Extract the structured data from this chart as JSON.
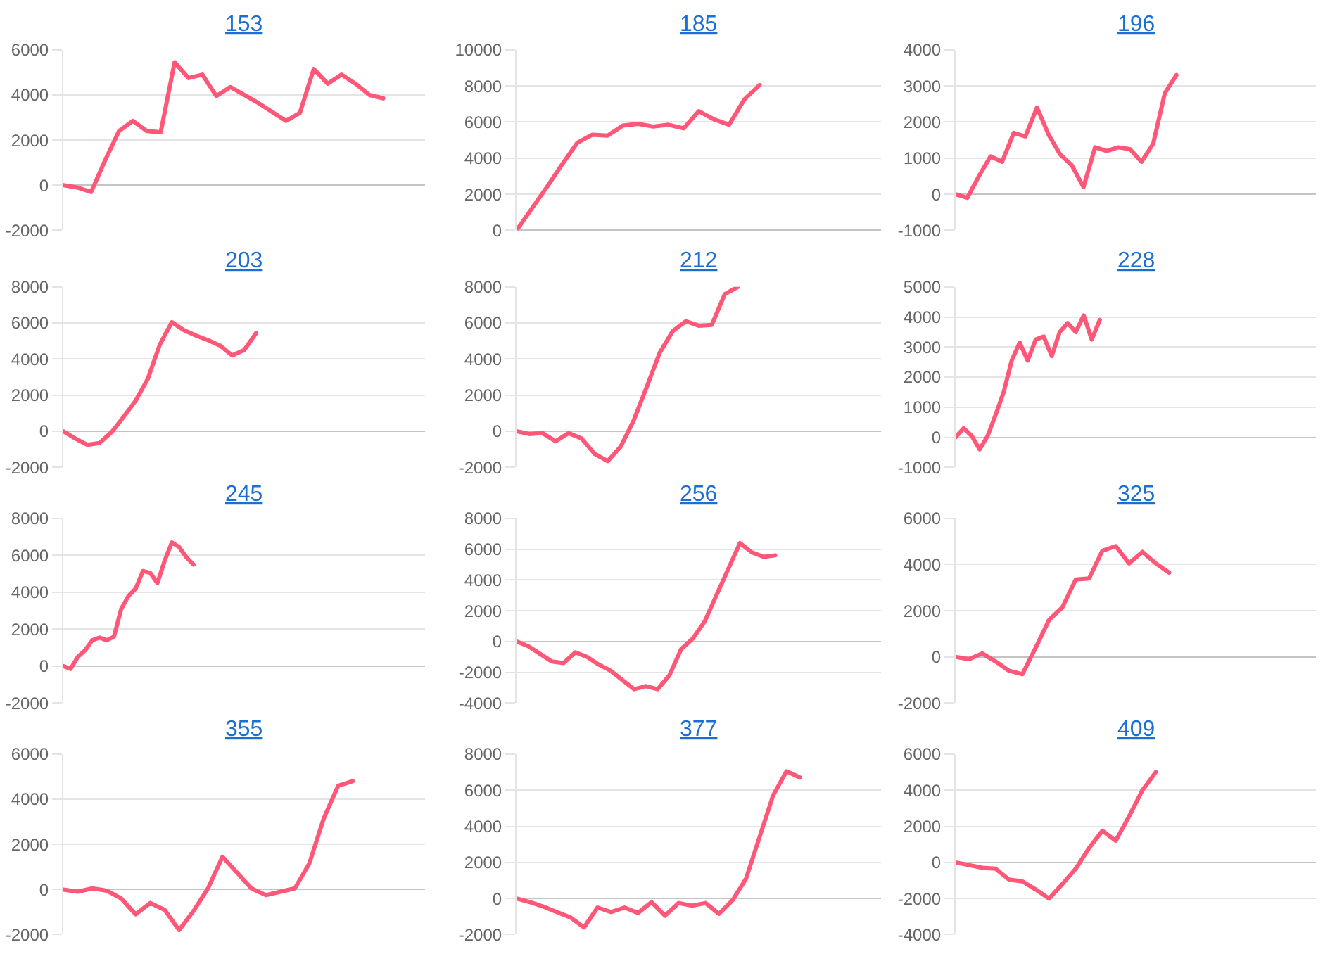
{
  "chart_data": [
    {
      "type": "line",
      "title": "153",
      "categories": [
        null,
        null,
        null,
        null,
        null,
        null,
        null,
        null,
        null,
        null,
        null,
        null,
        null,
        null,
        null,
        null,
        null,
        null,
        null,
        null,
        null,
        null,
        null,
        null,
        null,
        null,
        null
      ],
      "values": [
        0,
        -100,
        -300,
        1100,
        2400,
        2850,
        2400,
        2350,
        5450,
        4750,
        4900,
        3950,
        4350,
        4000,
        3650,
        3250,
        2850,
        3200,
        5150,
        4500,
        4900,
        4500,
        4000,
        3850,
        null,
        null,
        null
      ],
      "color": "#ff5777",
      "ylim": [
        -2000,
        6000
      ],
      "yticks": [
        -2000,
        0,
        2000,
        4000,
        6000
      ],
      "grid": "y",
      "tick_labels": "y"
    },
    {
      "type": "line",
      "title": "185",
      "categories": [
        null,
        null,
        null,
        null,
        null,
        null,
        null,
        null,
        null,
        null,
        null,
        null,
        null,
        null,
        null,
        null,
        null,
        null,
        null,
        null,
        null,
        null,
        null,
        null,
        null
      ],
      "values": [
        0,
        1200,
        2400,
        3650,
        4850,
        5300,
        5250,
        5800,
        5900,
        5750,
        5850,
        5650,
        6600,
        6150,
        5850,
        7250,
        8050,
        null,
        null,
        null,
        null,
        null,
        null,
        null,
        null
      ],
      "color": "#ff5777",
      "ylim": [
        0,
        10000
      ],
      "yticks": [
        0,
        2000,
        4000,
        6000,
        8000,
        10000
      ],
      "grid": "y",
      "tick_labels": "y"
    },
    {
      "type": "line",
      "title": "196",
      "categories": [
        null,
        null,
        null,
        null,
        null,
        null,
        null,
        null,
        null,
        null,
        null,
        null,
        null,
        null,
        null,
        null,
        null,
        null,
        null,
        null,
        null,
        null,
        null,
        null,
        null,
        null,
        null,
        null,
        null,
        null,
        null,
        null
      ],
      "values": [
        0,
        -100,
        500,
        1050,
        900,
        1700,
        1600,
        2400,
        1650,
        1100,
        800,
        200,
        1300,
        1200,
        1300,
        1250,
        900,
        1400,
        2800,
        3300,
        null,
        null,
        null,
        null,
        null,
        null,
        null,
        null,
        null,
        null,
        null,
        null
      ],
      "color": "#ff5777",
      "ylim": [
        -1000,
        4000
      ],
      "yticks": [
        -1000,
        0,
        1000,
        2000,
        3000,
        4000
      ],
      "grid": "y",
      "tick_labels": "y"
    },
    {
      "type": "line",
      "title": "203",
      "categories": [
        null,
        null,
        null,
        null,
        null,
        null,
        null,
        null,
        null,
        null,
        null,
        null,
        null,
        null,
        null,
        null,
        null,
        null,
        null,
        null,
        null,
        null,
        null,
        null,
        null,
        null,
        null,
        null,
        null,
        null,
        null
      ],
      "values": [
        0,
        -400,
        -750,
        -650,
        -50,
        800,
        1700,
        2900,
        4800,
        6050,
        5600,
        5300,
        5050,
        4750,
        4200,
        4500,
        5450,
        null,
        null,
        null,
        null,
        null,
        null,
        null,
        null,
        null,
        null,
        null,
        null,
        null,
        null
      ],
      "color": "#ff5777",
      "ylim": [
        -2000,
        8000
      ],
      "yticks": [
        -2000,
        0,
        2000,
        4000,
        6000,
        8000
      ],
      "grid": "y",
      "tick_labels": "y"
    },
    {
      "type": "line",
      "title": "212",
      "categories": [
        null,
        null,
        null,
        null,
        null,
        null,
        null,
        null,
        null,
        null,
        null,
        null,
        null,
        null,
        null,
        null,
        null,
        null,
        null,
        null,
        null,
        null,
        null,
        null,
        null,
        null,
        null,
        null,
        null
      ],
      "values": [
        0,
        -150,
        -100,
        -550,
        -100,
        -400,
        -1250,
        -1650,
        -850,
        600,
        2450,
        4350,
        5550,
        6100,
        5850,
        5900,
        7600,
        8000,
        null,
        null,
        null,
        null,
        null,
        null,
        null,
        null,
        null,
        null,
        null
      ],
      "color": "#ff5777",
      "ylim": [
        -2000,
        8000
      ],
      "yticks": [
        -2000,
        0,
        2000,
        4000,
        6000,
        8000
      ],
      "grid": "y",
      "tick_labels": "y"
    },
    {
      "type": "line",
      "title": "228",
      "categories": [
        null,
        null,
        null,
        null,
        null,
        null,
        null,
        null,
        null,
        null,
        null,
        null,
        null,
        null,
        null,
        null,
        null,
        null,
        null,
        null,
        null,
        null,
        null,
        null,
        null,
        null,
        null,
        null,
        null,
        null,
        null,
        null,
        null,
        null,
        null,
        null,
        null,
        null,
        null,
        null,
        null,
        null,
        null,
        null,
        null,
        null
      ],
      "values": [
        0,
        300,
        50,
        -400,
        50,
        750,
        1500,
        2550,
        3150,
        2550,
        3250,
        3350,
        2700,
        3500,
        3800,
        3500,
        4050,
        3250,
        3900,
        null,
        null,
        null,
        null,
        null,
        null,
        null,
        null,
        null,
        null,
        null,
        null,
        null,
        null,
        null,
        null,
        null,
        null,
        null,
        null,
        null,
        null,
        null,
        null,
        null,
        null,
        null
      ],
      "color": "#ff5777",
      "ylim": [
        -1000,
        5000
      ],
      "yticks": [
        -1000,
        0,
        1000,
        2000,
        3000,
        4000,
        5000
      ],
      "grid": "y",
      "tick_labels": "y"
    },
    {
      "type": "line",
      "title": "245",
      "categories": [
        null,
        null,
        null,
        null,
        null,
        null,
        null,
        null,
        null,
        null,
        null,
        null,
        null,
        null,
        null,
        null,
        null,
        null,
        null,
        null,
        null,
        null,
        null,
        null,
        null,
        null,
        null,
        null,
        null,
        null,
        null,
        null,
        null,
        null,
        null,
        null,
        null,
        null,
        null,
        null,
        null,
        null,
        null,
        null,
        null,
        null,
        null,
        null,
        null,
        null,
        null
      ],
      "values": [
        0,
        -150,
        500,
        850,
        1400,
        1550,
        1400,
        1600,
        3100,
        3800,
        4200,
        5150,
        5050,
        4500,
        5700,
        6700,
        6450,
        5900,
        5500,
        null,
        null,
        null,
        null,
        null,
        null,
        null,
        null,
        null,
        null,
        null,
        null,
        null,
        null,
        null,
        null,
        null,
        null,
        null,
        null,
        null,
        null,
        null,
        null,
        null,
        null,
        null,
        null,
        null,
        null,
        null,
        null
      ],
      "color": "#ff5777",
      "ylim": [
        -2000,
        8000
      ],
      "yticks": [
        -2000,
        0,
        2000,
        4000,
        6000,
        8000
      ],
      "grid": "y",
      "tick_labels": "y"
    },
    {
      "type": "line",
      "title": "256",
      "categories": [
        null,
        null,
        null,
        null,
        null,
        null,
        null,
        null,
        null,
        null,
        null,
        null,
        null,
        null,
        null,
        null,
        null,
        null,
        null,
        null,
        null,
        null,
        null,
        null,
        null,
        null,
        null,
        null,
        null,
        null,
        null,
        null
      ],
      "values": [
        0,
        -300,
        -800,
        -1300,
        -1400,
        -700,
        -1000,
        -1500,
        -1900,
        -2500,
        -3100,
        -2900,
        -3100,
        -2200,
        -500,
        200,
        1300,
        3000,
        4700,
        6400,
        5800,
        5500,
        5600,
        null,
        null,
        null,
        null,
        null,
        null,
        null,
        null,
        null
      ],
      "color": "#ff5777",
      "ylim": [
        -4000,
        8000
      ],
      "yticks": [
        -4000,
        -2000,
        0,
        2000,
        4000,
        6000,
        8000
      ],
      "grid": "y",
      "tick_labels": "y"
    },
    {
      "type": "line",
      "title": "325",
      "categories": [
        null,
        null,
        null,
        null,
        null,
        null,
        null,
        null,
        null,
        null,
        null,
        null,
        null,
        null,
        null,
        null,
        null,
        null,
        null,
        null,
        null,
        null,
        null,
        null,
        null,
        null,
        null,
        null
      ],
      "values": [
        0,
        -100,
        150,
        -200,
        -600,
        -750,
        400,
        1600,
        2150,
        3350,
        3400,
        4600,
        4800,
        4050,
        4550,
        4050,
        3650,
        null,
        null,
        null,
        null,
        null,
        null,
        null,
        null,
        null,
        null,
        null
      ],
      "color": "#ff5777",
      "ylim": [
        -2000,
        6000
      ],
      "yticks": [
        -2000,
        0,
        2000,
        4000,
        6000
      ],
      "grid": "y",
      "tick_labels": "y"
    },
    {
      "type": "line",
      "title": "355",
      "categories": [
        null,
        null,
        null,
        null,
        null,
        null,
        null,
        null,
        null,
        null,
        null,
        null,
        null,
        null,
        null,
        null,
        null,
        null,
        null,
        null,
        null,
        null,
        null,
        null,
        null,
        null
      ],
      "values": [
        0,
        -100,
        50,
        -50,
        -400,
        -1100,
        -600,
        -900,
        -1800,
        -950,
        50,
        1450,
        750,
        50,
        -250,
        -100,
        50,
        1150,
        3150,
        4600,
        4800,
        null,
        null,
        null,
        null,
        null
      ],
      "color": "#ff5777",
      "ylim": [
        -2000,
        6000
      ],
      "yticks": [
        -2000,
        0,
        2000,
        4000,
        6000
      ],
      "grid": "y",
      "tick_labels": "y"
    },
    {
      "type": "line",
      "title": "377",
      "categories": [
        null,
        null,
        null,
        null,
        null,
        null,
        null,
        null,
        null,
        null,
        null,
        null,
        null,
        null,
        null,
        null,
        null,
        null,
        null,
        null,
        null,
        null,
        null,
        null,
        null,
        null,
        null,
        null
      ],
      "values": [
        0,
        -200,
        -450,
        -750,
        -1050,
        -1600,
        -500,
        -750,
        -500,
        -800,
        -200,
        -950,
        -250,
        -400,
        -250,
        -850,
        -100,
        1100,
        3400,
        5700,
        7050,
        6700,
        null,
        null,
        null,
        null,
        null,
        null
      ],
      "color": "#ff5777",
      "ylim": [
        -2000,
        8000
      ],
      "yticks": [
        -2000,
        0,
        2000,
        4000,
        6000,
        8000
      ],
      "grid": "y",
      "tick_labels": "y"
    },
    {
      "type": "line",
      "title": "409",
      "categories": [
        null,
        null,
        null,
        null,
        null,
        null,
        null,
        null,
        null,
        null,
        null,
        null,
        null,
        null,
        null,
        null,
        null,
        null,
        null,
        null,
        null,
        null,
        null,
        null,
        null,
        null,
        null,
        null
      ],
      "values": [
        0,
        -150,
        -300,
        -350,
        -950,
        -1050,
        -1500,
        -2000,
        -1200,
        -350,
        800,
        1750,
        1200,
        2550,
        4000,
        5000,
        null,
        null,
        null,
        null,
        null,
        null,
        null,
        null,
        null,
        null,
        null,
        null
      ],
      "color": "#ff5777",
      "ylim": [
        -4000,
        6000
      ],
      "yticks": [
        -4000,
        -2000,
        0,
        2000,
        4000,
        6000
      ],
      "grid": "y",
      "tick_labels": "y"
    }
  ]
}
